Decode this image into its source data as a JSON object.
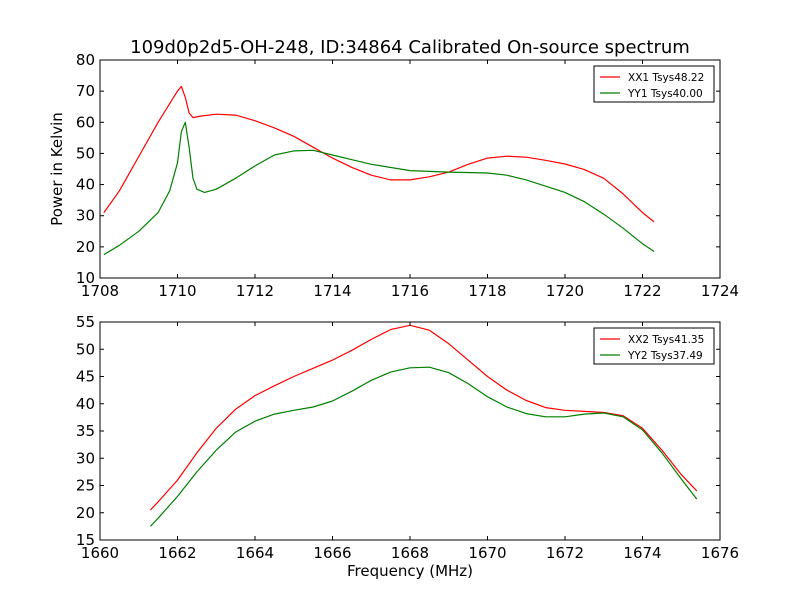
{
  "figure": {
    "title": "109d0p2d5-OH-248, ID:34864 Calibrated On-source spectrum"
  },
  "chart_data": [
    {
      "type": "line",
      "title": "109d0p2d5-OH-248, ID:34864 Calibrated On-source spectrum",
      "xlabel": "",
      "ylabel": "Power in Kelvin",
      "xlim": [
        1708,
        1724
      ],
      "ylim": [
        10,
        80
      ],
      "xticks": [
        1708,
        1710,
        1712,
        1714,
        1716,
        1718,
        1720,
        1722,
        1724
      ],
      "yticks": [
        10,
        20,
        30,
        40,
        50,
        60,
        70,
        80
      ],
      "grid": false,
      "legend_position": "top-right",
      "series": [
        {
          "name": "XX1 Tsys48.22",
          "color": "#ff0000",
          "x": [
            1708.1,
            1708.5,
            1709.0,
            1709.5,
            1709.8,
            1710.0,
            1710.1,
            1710.2,
            1710.3,
            1710.4,
            1710.6,
            1711.0,
            1711.5,
            1712.0,
            1712.5,
            1713.0,
            1713.5,
            1714.0,
            1714.5,
            1715.0,
            1715.5,
            1716.0,
            1716.5,
            1717.0,
            1717.5,
            1718.0,
            1718.5,
            1719.0,
            1719.5,
            1720.0,
            1720.5,
            1721.0,
            1721.5,
            1722.0,
            1722.3
          ],
          "y": [
            31,
            38,
            49,
            60,
            66,
            70,
            71.5,
            68,
            63,
            61.5,
            62,
            62.6,
            62.3,
            60.5,
            58.2,
            55.5,
            52,
            48.5,
            45.5,
            43,
            41.5,
            41.5,
            42.5,
            44,
            46.5,
            48.5,
            49.1,
            48.8,
            47.8,
            46.6,
            44.8,
            42,
            37,
            31,
            28
          ]
        },
        {
          "name": "YY1 Tsys40.00",
          "color": "#008000",
          "x": [
            1708.1,
            1708.5,
            1709.0,
            1709.5,
            1709.8,
            1710.0,
            1710.1,
            1710.2,
            1710.3,
            1710.4,
            1710.5,
            1710.7,
            1711.0,
            1711.5,
            1712.0,
            1712.5,
            1713.0,
            1713.5,
            1714.0,
            1714.5,
            1715.0,
            1716.0,
            1717.0,
            1718.0,
            1718.5,
            1719.0,
            1720.0,
            1720.5,
            1721.0,
            1721.5,
            1722.0,
            1722.3
          ],
          "y": [
            17.5,
            20.5,
            25,
            31,
            38,
            47,
            57,
            60,
            52,
            42,
            38.5,
            37.5,
            38.5,
            42,
            46,
            49.5,
            50.8,
            51,
            49.5,
            48,
            46.5,
            44.5,
            44,
            43.7,
            43,
            41.5,
            37.5,
            34.5,
            30.5,
            26,
            21,
            18.5
          ]
        }
      ]
    },
    {
      "type": "line",
      "title": "",
      "xlabel": "Frequency (MHz)",
      "ylabel": "",
      "xlim": [
        1660,
        1676
      ],
      "ylim": [
        15,
        55
      ],
      "xticks": [
        1660,
        1662,
        1664,
        1666,
        1668,
        1670,
        1672,
        1674,
        1676
      ],
      "yticks": [
        15,
        20,
        25,
        30,
        35,
        40,
        45,
        50,
        55
      ],
      "grid": false,
      "legend_position": "top-right",
      "series": [
        {
          "name": "XX2 Tsys41.35",
          "color": "#ff0000",
          "x": [
            1661.3,
            1661.5,
            1662.0,
            1662.5,
            1663.0,
            1663.5,
            1664.0,
            1664.5,
            1665.0,
            1665.5,
            1666.0,
            1666.5,
            1667.0,
            1667.5,
            1668.0,
            1668.5,
            1669.0,
            1669.5,
            1670.0,
            1670.5,
            1671.0,
            1671.5,
            1672.0,
            1672.5,
            1673.0,
            1673.5,
            1674.0,
            1674.5,
            1675.0,
            1675.4
          ],
          "y": [
            20.5,
            22,
            26,
            31,
            35.5,
            39,
            41.5,
            43.3,
            45,
            46.5,
            48,
            49.8,
            51.8,
            53.6,
            54.4,
            53.5,
            51,
            48,
            45,
            42.5,
            40.6,
            39.3,
            38.8,
            38.6,
            38.4,
            37.8,
            35.5,
            31.5,
            27,
            24
          ]
        },
        {
          "name": "YY2 Tsys37.49",
          "color": "#008000",
          "x": [
            1661.3,
            1661.5,
            1662.0,
            1662.5,
            1663.0,
            1663.5,
            1664.0,
            1664.5,
            1665.0,
            1665.5,
            1666.0,
            1666.5,
            1667.0,
            1667.5,
            1668.0,
            1668.5,
            1669.0,
            1669.5,
            1670.0,
            1670.5,
            1671.0,
            1671.5,
            1672.0,
            1672.5,
            1673.0,
            1673.5,
            1674.0,
            1674.5,
            1675.0,
            1675.4
          ],
          "y": [
            17.5,
            19,
            23,
            27.5,
            31.5,
            34.8,
            36.8,
            38.1,
            38.8,
            39.4,
            40.5,
            42.3,
            44.3,
            45.8,
            46.6,
            46.7,
            45.7,
            43.7,
            41.3,
            39.4,
            38.2,
            37.6,
            37.6,
            38.1,
            38.3,
            37.6,
            35.2,
            31,
            26.2,
            22.5
          ]
        }
      ]
    }
  ]
}
